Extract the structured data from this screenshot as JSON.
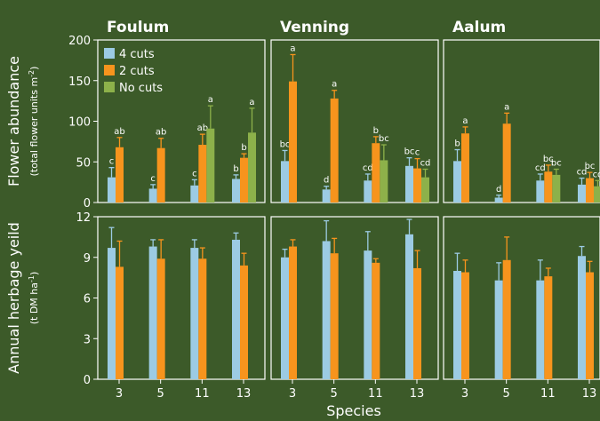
{
  "colors": {
    "background": "#3c5a29",
    "frame": "#ffffff",
    "text": "#ffffff",
    "error_bar": "#ffffff",
    "series": [
      "#9ccbe3",
      "#f7941d",
      "#8db14a"
    ]
  },
  "chart_data": {
    "type": "bar",
    "xlabel": "Species",
    "categories": [
      "3",
      "5",
      "11",
      "13"
    ],
    "sites": [
      "Foulum",
      "Venning",
      "Aalum"
    ],
    "legend": {
      "placement": "top-left",
      "entries": [
        "4 cuts",
        "2 cuts",
        "No cuts"
      ]
    },
    "rows": [
      {
        "name": "flower",
        "ylabel": "Flower abundance",
        "ysublabel_main": "(total flower units m",
        "ysublabel_sup": "-2",
        "ysublabel_end": ")",
        "ylim": [
          0,
          200
        ],
        "yticks": [
          "0",
          "50",
          "100",
          "150",
          "200"
        ],
        "yticks_values": [
          0,
          50,
          100,
          150,
          200
        ],
        "panels": [
          {
            "site": "Foulum",
            "series": [
              {
                "name": "4 cuts",
                "values": [
                  31,
                  17,
                  21,
                  29
                ],
                "errors": [
                  12,
                  5,
                  7,
                  5
                ],
                "letters": [
                  "c",
                  "c",
                  "c",
                  "b"
                ]
              },
              {
                "name": "2 cuts",
                "values": [
                  68,
                  67,
                  71,
                  55
                ],
                "errors": [
                  12,
                  12,
                  13,
                  5
                ],
                "letters": [
                  "ab",
                  "ab",
                  "ab",
                  "b"
                ]
              },
              {
                "name": "No cuts",
                "values": [
                  null,
                  null,
                  91,
                  86
                ],
                "errors": [
                  null,
                  null,
                  28,
                  30
                ],
                "letters": [
                  "",
                  "",
                  "a",
                  "a"
                ]
              }
            ]
          },
          {
            "site": "Venning",
            "series": [
              {
                "name": "4 cuts",
                "values": [
                  51,
                  16,
                  27,
                  45
                ],
                "errors": [
                  13,
                  4,
                  8,
                  10
                ],
                "letters": [
                  "bc",
                  "d",
                  "cd",
                  "bc"
                ]
              },
              {
                "name": "2 cuts",
                "values": [
                  149,
                  128,
                  73,
                  42
                ],
                "errors": [
                  33,
                  10,
                  8,
                  12
                ],
                "letters": [
                  "a",
                  "a",
                  "b",
                  "c"
                ]
              },
              {
                "name": "No cuts",
                "values": [
                  null,
                  null,
                  52,
                  31
                ],
                "errors": [
                  null,
                  null,
                  19,
                  10
                ],
                "letters": [
                  "",
                  "",
                  "bc",
                  "cd"
                ]
              }
            ]
          },
          {
            "site": "Aalum",
            "series": [
              {
                "name": "4 cuts",
                "values": [
                  51,
                  6,
                  27,
                  22
                ],
                "errors": [
                  14,
                  3,
                  8,
                  8
                ],
                "letters": [
                  "b",
                  "d",
                  "cd",
                  "cd"
                ]
              },
              {
                "name": "2 cuts",
                "values": [
                  85,
                  97,
                  38,
                  30
                ],
                "errors": [
                  8,
                  13,
                  8,
                  7
                ],
                "letters": [
                  "a",
                  "a",
                  "bc",
                  "bc"
                ]
              },
              {
                "name": "No cuts",
                "values": [
                  null,
                  null,
                  34,
                  20
                ],
                "errors": [
                  null,
                  null,
                  7,
                  7
                ],
                "letters": [
                  "",
                  "",
                  "bc",
                  "cd"
                ]
              }
            ]
          }
        ]
      },
      {
        "name": "herbage",
        "ylabel": "Annual herbage yeild",
        "ysublabel_main": "(t DM ha",
        "ysublabel_sup": "-1",
        "ysublabel_end": ")",
        "ylim": [
          0,
          12
        ],
        "yticks": [
          "0",
          "3",
          "6",
          "9",
          "12"
        ],
        "yticks_values": [
          0,
          3,
          6,
          9,
          12
        ],
        "panels": [
          {
            "site": "Foulum",
            "series": [
              {
                "name": "4 cuts",
                "values": [
                  9.7,
                  9.8,
                  9.7,
                  10.3
                ],
                "errors": [
                  1.5,
                  0.5,
                  0.6,
                  0.5
                ]
              },
              {
                "name": "2 cuts",
                "values": [
                  8.3,
                  8.9,
                  8.9,
                  8.4
                ],
                "errors": [
                  1.9,
                  1.4,
                  0.8,
                  0.9
                ]
              }
            ]
          },
          {
            "site": "Venning",
            "series": [
              {
                "name": "4 cuts",
                "values": [
                  9.0,
                  10.2,
                  9.5,
                  10.7
                ],
                "errors": [
                  0.6,
                  1.5,
                  1.4,
                  1.1
                ]
              },
              {
                "name": "2 cuts",
                "values": [
                  9.8,
                  9.3,
                  8.6,
                  8.2
                ],
                "errors": [
                  0.5,
                  1.1,
                  0.3,
                  1.3
                ]
              }
            ]
          },
          {
            "site": "Aalum",
            "series": [
              {
                "name": "4 cuts",
                "values": [
                  8.0,
                  7.3,
                  7.3,
                  9.1
                ],
                "errors": [
                  1.3,
                  1.3,
                  1.5,
                  0.7
                ]
              },
              {
                "name": "2 cuts",
                "values": [
                  7.9,
                  8.8,
                  7.6,
                  7.9
                ],
                "errors": [
                  0.9,
                  1.7,
                  0.6,
                  0.8
                ]
              }
            ]
          }
        ]
      }
    ]
  }
}
